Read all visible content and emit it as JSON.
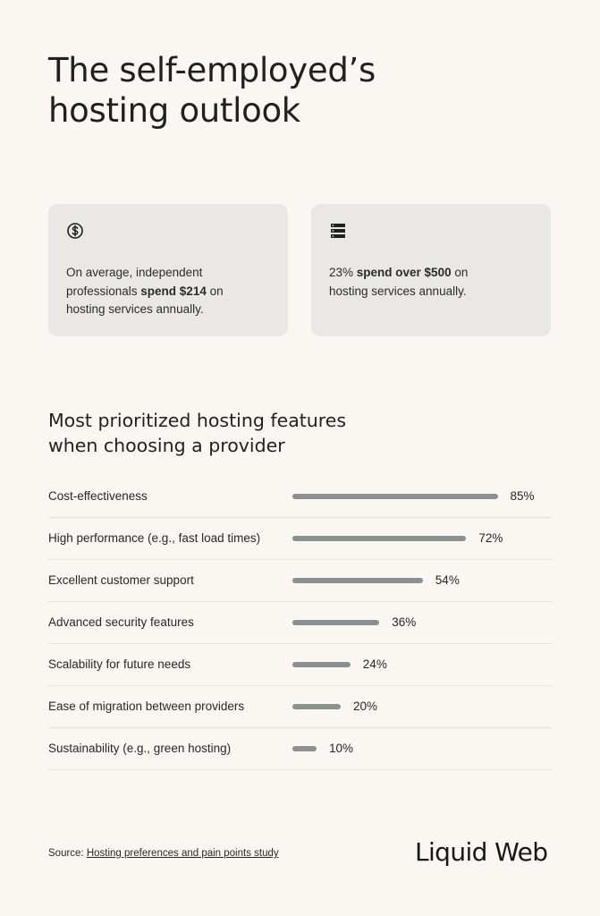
{
  "title": {
    "line1": "The self-employed’s",
    "line2": "hosting outlook"
  },
  "cards": [
    {
      "icon": "dollar-circle-icon",
      "text_before": "On average, independent professionals ",
      "text_bold": "spend $214",
      "text_after": " on hosting services annually."
    },
    {
      "icon": "server-icon",
      "text_before": "23% ",
      "text_bold": "spend over $500",
      "text_after": " on hosting services annually."
    }
  ],
  "subtitle": {
    "line1": "Most prioritized hosting features",
    "line2": "when choosing a provider"
  },
  "chart_data": {
    "type": "bar",
    "orientation": "horizontal",
    "title": "Most prioritized hosting features when choosing a provider",
    "categories": [
      "Cost-effectiveness",
      "High performance (e.g., fast load times)",
      "Excellent customer support",
      "Advanced security features",
      "Scalability for future needs",
      "Ease of migration between providers",
      "Sustainability (e.g., green hosting)"
    ],
    "values": [
      85,
      72,
      54,
      36,
      24,
      20,
      10
    ],
    "value_labels": [
      "85%",
      "72%",
      "54%",
      "36%",
      "24%",
      "20%",
      "10%"
    ],
    "xlim": [
      0,
      100
    ],
    "bar_color": "#8a9192",
    "grid": false
  },
  "source": {
    "prefix": "Source: ",
    "link_text": "Hosting preferences and pain points study"
  },
  "logo": "Liquid Web",
  "colors": {
    "background": "#faf7f3",
    "card": "#e9e8e7",
    "bar": "#8a9192",
    "text": "#1f2120"
  }
}
